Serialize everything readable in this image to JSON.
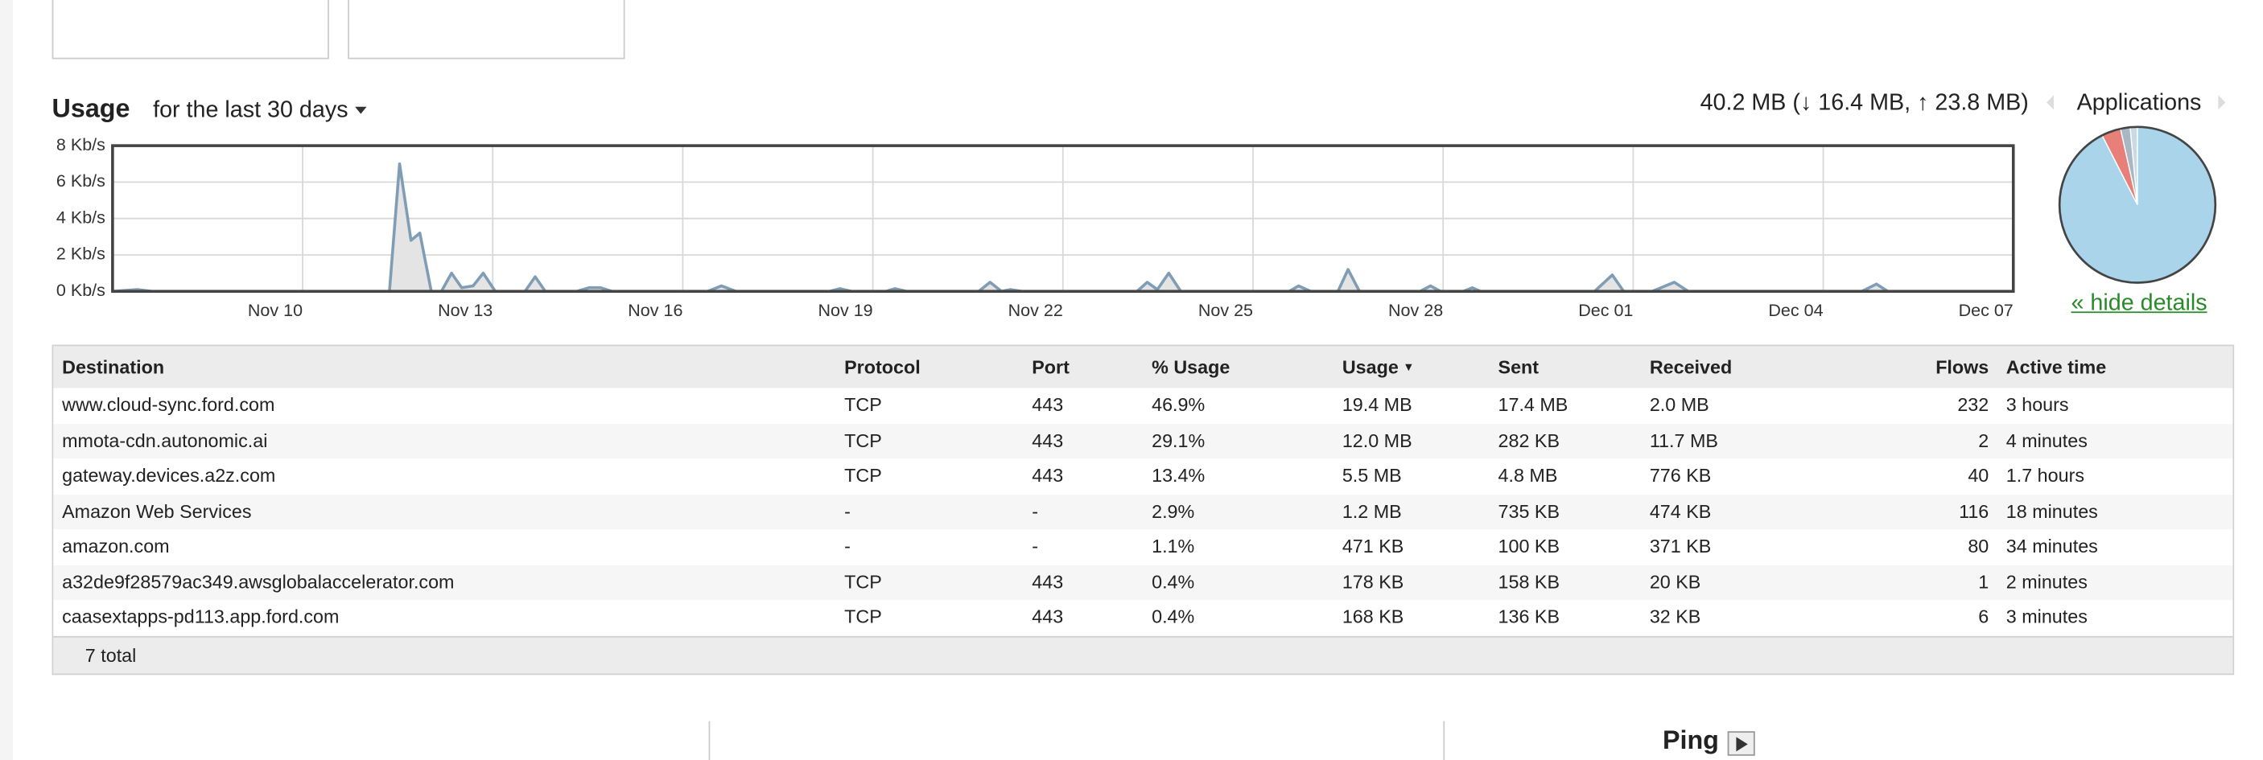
{
  "chart_data": [
    {
      "type": "line",
      "title": "Usage",
      "subtitle": "for the last 30 days",
      "annotation": "40.2 MB (↓ 16.4 MB, ↑ 23.8 MB)",
      "x": [
        0,
        0.39,
        0.62,
        4.37,
        4.53,
        4.71,
        4.85,
        5.03,
        5.19,
        5.35,
        5.51,
        5.69,
        5.85,
        6.04,
        6.51,
        6.67,
        6.83,
        7.33,
        7.52,
        7.7,
        7.88,
        9.39,
        9.61,
        9.84,
        11.32,
        11.48,
        11.66,
        12.21,
        12.35,
        12.53,
        13.67,
        13.85,
        14.03,
        14.17,
        14.35,
        16.17,
        16.33,
        16.49,
        16.67,
        16.86,
        18.57,
        18.72,
        18.91,
        19.34,
        19.5,
        19.68,
        20.64,
        20.8,
        20.96,
        21.32,
        21.46,
        21.59,
        23.39,
        23.67,
        23.85,
        24.3,
        24.65,
        24.87,
        27.61,
        27.84,
        28.02,
        30
      ],
      "series": [
        {
          "color": "#7f9db5",
          "fill": "#e4e4e4",
          "values": [
            0,
            0.1,
            0,
            0,
            7,
            2.8,
            3.2,
            0,
            0,
            1.0,
            0.2,
            0.3,
            1.0,
            0,
            0,
            0.8,
            0,
            0,
            0.2,
            0.2,
            0,
            0,
            0.3,
            0,
            0,
            0.15,
            0,
            0,
            0.15,
            0,
            0,
            0.5,
            0,
            0.1,
            0,
            0,
            0.5,
            0.1,
            1.0,
            0,
            0,
            0.3,
            0,
            0,
            1.2,
            0,
            0,
            0.3,
            0,
            0,
            0.2,
            0,
            0,
            0.9,
            0,
            0,
            0.5,
            0,
            0,
            0.4,
            0,
            0
          ]
        }
      ],
      "xlim": [
        0,
        30
      ],
      "xticks": [
        {
          "value": 3,
          "label": "Nov 10"
        },
        {
          "value": 6,
          "label": "Nov 13"
        },
        {
          "value": 9,
          "label": "Nov 16"
        },
        {
          "value": 12,
          "label": "Nov 19"
        },
        {
          "value": 15,
          "label": "Nov 22"
        },
        {
          "value": 18,
          "label": "Nov 25"
        },
        {
          "value": 21,
          "label": "Nov 28"
        },
        {
          "value": 24,
          "label": "Dec 01"
        },
        {
          "value": 27,
          "label": "Dec 04"
        },
        {
          "value": 30,
          "label": "Dec 07"
        }
      ],
      "ylim": [
        0,
        8
      ],
      "yticks": [
        {
          "value": 0,
          "label": "0 Kb/s"
        },
        {
          "value": 2,
          "label": "2 Kb/s"
        },
        {
          "value": 4,
          "label": "4 Kb/s"
        },
        {
          "value": 6,
          "label": "6 Kb/s"
        },
        {
          "value": 8,
          "label": "8 Kb/s"
        }
      ],
      "grid": true
    },
    {
      "type": "pie",
      "title": "Applications",
      "values": [
        1.5,
        2,
        4,
        92.5
      ],
      "colors": [
        "#c9d9e6",
        "#a9b6c3",
        "#e8807a",
        "#a9d4ea"
      ]
    }
  ],
  "details_link": "« hide details",
  "table": {
    "columns": [
      "Destination",
      "Protocol",
      "Port",
      "% Usage",
      "Usage",
      "Sent",
      "Received",
      "Flows",
      "Active time"
    ],
    "sort_indicator": "▼",
    "rows": [
      [
        "www.cloud-sync.ford.com",
        "TCP",
        "443",
        "46.9%",
        "19.4 MB",
        "17.4 MB",
        "2.0 MB",
        "232",
        "3 hours"
      ],
      [
        "mmota-cdn.autonomic.ai",
        "TCP",
        "443",
        "29.1%",
        "12.0 MB",
        "282 KB",
        "11.7 MB",
        "2",
        "4 minutes"
      ],
      [
        "gateway.devices.a2z.com",
        "TCP",
        "443",
        "13.4%",
        "5.5 MB",
        "4.8 MB",
        "776 KB",
        "40",
        "1.7 hours"
      ],
      [
        "Amazon Web Services",
        "-",
        "-",
        "2.9%",
        "1.2 MB",
        "735 KB",
        "474 KB",
        "116",
        "18 minutes"
      ],
      [
        "amazon.com",
        "-",
        "-",
        "1.1%",
        "471 KB",
        "100 KB",
        "371 KB",
        "80",
        "34 minutes"
      ],
      [
        "a32de9f28579ac349.awsglobalaccelerator.com",
        "TCP",
        "443",
        "0.4%",
        "178 KB",
        "158 KB",
        "20 KB",
        "1",
        "2 minutes"
      ],
      [
        "caasextapps-pd113.app.ford.com",
        "TCP",
        "443",
        "0.4%",
        "168 KB",
        "136 KB",
        "32 KB",
        "6",
        "3 minutes"
      ]
    ],
    "footer": "7 total"
  },
  "ping": "Ping"
}
